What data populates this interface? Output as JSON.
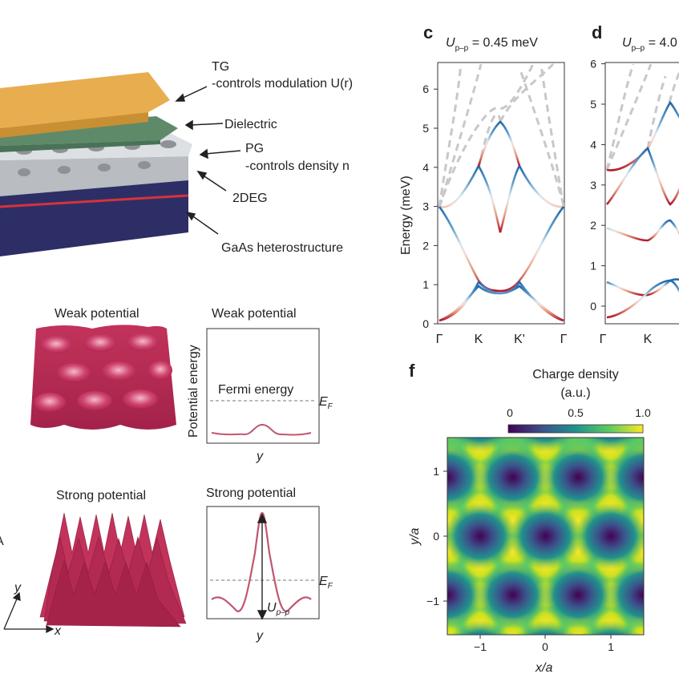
{
  "device": {
    "tg_label": "TG",
    "tg_desc": "-controls modulation U(r)",
    "dielectric_label": "Dielectric",
    "pg_label": "PG",
    "pg_desc": "-controls density n",
    "twodeg_label": "2DEG",
    "gaas_label": "GaAs heterostructure"
  },
  "weak": {
    "surface_title": "Weak potential",
    "plot_title": "Weak potential",
    "ylabel": "Potential energy",
    "xlabel": "y",
    "fermi_label": "Fermi energy",
    "ef_label": "E",
    "ef_sub": "F"
  },
  "strong": {
    "surface_title": "Strong potential",
    "plot_title": "Strong potential",
    "xlabel": "y",
    "ef_label": "E",
    "ef_sub": "F",
    "upp_label": "U",
    "upp_sub": "p–p"
  },
  "axes_gizmo": {
    "y": "y",
    "x": "x",
    "a_fragment": "A"
  },
  "panel_c": {
    "letter": "c",
    "title_U": "U",
    "title_sub": "p–p",
    "title_value": " = 0.45 meV",
    "ylabel": "Energy (meV)",
    "yticks": [
      "0",
      "1",
      "2",
      "3",
      "4",
      "5",
      "6"
    ],
    "xticks": [
      "Γ",
      "K",
      "K'",
      "Γ"
    ]
  },
  "panel_d": {
    "letter": "d",
    "title_U": "U",
    "title_sub": "p–p",
    "title_value": " = 4.0",
    "yticks": [
      "0",
      "1",
      "2",
      "3",
      "4",
      "5",
      "6"
    ],
    "xticks": [
      "Γ",
      "K"
    ]
  },
  "panel_f": {
    "letter": "f",
    "cbar_title": "Charge density",
    "cbar_units": "(a.u.)",
    "cbar_ticks": [
      "0",
      "0.5",
      "1.0"
    ],
    "ylabel": "y/a",
    "xlabel": "x/a",
    "yticks": [
      "1",
      "0",
      "−1"
    ],
    "xticks": [
      "−1",
      "0",
      "1"
    ]
  },
  "colors": {
    "tg": "#e8ad4e",
    "dielectric": "#5e8a6a",
    "pg": "#cfd2d6",
    "twodeg": "#d8323a",
    "gaas": "#2d2e66",
    "surface": "#c2335a",
    "potential_curve": "#c1566f",
    "ghost_band": "#c8c8c8"
  }
}
